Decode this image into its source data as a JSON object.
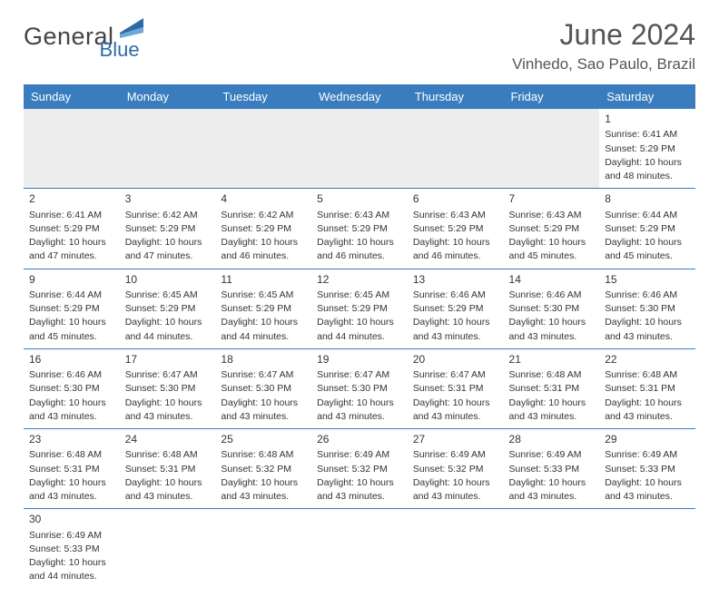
{
  "brand": {
    "text1": "General",
    "text2": "Blue"
  },
  "title": "June 2024",
  "location": "Vinhedo, Sao Paulo, Brazil",
  "colors": {
    "header_bg": "#3a7dbf",
    "header_fg": "#ffffff",
    "rule": "#3a7dbf",
    "text": "#333333",
    "brand_blue": "#2f6aa8"
  },
  "weekdays": [
    "Sunday",
    "Monday",
    "Tuesday",
    "Wednesday",
    "Thursday",
    "Friday",
    "Saturday"
  ],
  "weeks": [
    [
      null,
      null,
      null,
      null,
      null,
      null,
      {
        "n": "1",
        "sr": "Sunrise: 6:41 AM",
        "ss": "Sunset: 5:29 PM",
        "d1": "Daylight: 10 hours",
        "d2": "and 48 minutes."
      }
    ],
    [
      {
        "n": "2",
        "sr": "Sunrise: 6:41 AM",
        "ss": "Sunset: 5:29 PM",
        "d1": "Daylight: 10 hours",
        "d2": "and 47 minutes."
      },
      {
        "n": "3",
        "sr": "Sunrise: 6:42 AM",
        "ss": "Sunset: 5:29 PM",
        "d1": "Daylight: 10 hours",
        "d2": "and 47 minutes."
      },
      {
        "n": "4",
        "sr": "Sunrise: 6:42 AM",
        "ss": "Sunset: 5:29 PM",
        "d1": "Daylight: 10 hours",
        "d2": "and 46 minutes."
      },
      {
        "n": "5",
        "sr": "Sunrise: 6:43 AM",
        "ss": "Sunset: 5:29 PM",
        "d1": "Daylight: 10 hours",
        "d2": "and 46 minutes."
      },
      {
        "n": "6",
        "sr": "Sunrise: 6:43 AM",
        "ss": "Sunset: 5:29 PM",
        "d1": "Daylight: 10 hours",
        "d2": "and 46 minutes."
      },
      {
        "n": "7",
        "sr": "Sunrise: 6:43 AM",
        "ss": "Sunset: 5:29 PM",
        "d1": "Daylight: 10 hours",
        "d2": "and 45 minutes."
      },
      {
        "n": "8",
        "sr": "Sunrise: 6:44 AM",
        "ss": "Sunset: 5:29 PM",
        "d1": "Daylight: 10 hours",
        "d2": "and 45 minutes."
      }
    ],
    [
      {
        "n": "9",
        "sr": "Sunrise: 6:44 AM",
        "ss": "Sunset: 5:29 PM",
        "d1": "Daylight: 10 hours",
        "d2": "and 45 minutes."
      },
      {
        "n": "10",
        "sr": "Sunrise: 6:45 AM",
        "ss": "Sunset: 5:29 PM",
        "d1": "Daylight: 10 hours",
        "d2": "and 44 minutes."
      },
      {
        "n": "11",
        "sr": "Sunrise: 6:45 AM",
        "ss": "Sunset: 5:29 PM",
        "d1": "Daylight: 10 hours",
        "d2": "and 44 minutes."
      },
      {
        "n": "12",
        "sr": "Sunrise: 6:45 AM",
        "ss": "Sunset: 5:29 PM",
        "d1": "Daylight: 10 hours",
        "d2": "and 44 minutes."
      },
      {
        "n": "13",
        "sr": "Sunrise: 6:46 AM",
        "ss": "Sunset: 5:29 PM",
        "d1": "Daylight: 10 hours",
        "d2": "and 43 minutes."
      },
      {
        "n": "14",
        "sr": "Sunrise: 6:46 AM",
        "ss": "Sunset: 5:30 PM",
        "d1": "Daylight: 10 hours",
        "d2": "and 43 minutes."
      },
      {
        "n": "15",
        "sr": "Sunrise: 6:46 AM",
        "ss": "Sunset: 5:30 PM",
        "d1": "Daylight: 10 hours",
        "d2": "and 43 minutes."
      }
    ],
    [
      {
        "n": "16",
        "sr": "Sunrise: 6:46 AM",
        "ss": "Sunset: 5:30 PM",
        "d1": "Daylight: 10 hours",
        "d2": "and 43 minutes."
      },
      {
        "n": "17",
        "sr": "Sunrise: 6:47 AM",
        "ss": "Sunset: 5:30 PM",
        "d1": "Daylight: 10 hours",
        "d2": "and 43 minutes."
      },
      {
        "n": "18",
        "sr": "Sunrise: 6:47 AM",
        "ss": "Sunset: 5:30 PM",
        "d1": "Daylight: 10 hours",
        "d2": "and 43 minutes."
      },
      {
        "n": "19",
        "sr": "Sunrise: 6:47 AM",
        "ss": "Sunset: 5:30 PM",
        "d1": "Daylight: 10 hours",
        "d2": "and 43 minutes."
      },
      {
        "n": "20",
        "sr": "Sunrise: 6:47 AM",
        "ss": "Sunset: 5:31 PM",
        "d1": "Daylight: 10 hours",
        "d2": "and 43 minutes."
      },
      {
        "n": "21",
        "sr": "Sunrise: 6:48 AM",
        "ss": "Sunset: 5:31 PM",
        "d1": "Daylight: 10 hours",
        "d2": "and 43 minutes."
      },
      {
        "n": "22",
        "sr": "Sunrise: 6:48 AM",
        "ss": "Sunset: 5:31 PM",
        "d1": "Daylight: 10 hours",
        "d2": "and 43 minutes."
      }
    ],
    [
      {
        "n": "23",
        "sr": "Sunrise: 6:48 AM",
        "ss": "Sunset: 5:31 PM",
        "d1": "Daylight: 10 hours",
        "d2": "and 43 minutes."
      },
      {
        "n": "24",
        "sr": "Sunrise: 6:48 AM",
        "ss": "Sunset: 5:31 PM",
        "d1": "Daylight: 10 hours",
        "d2": "and 43 minutes."
      },
      {
        "n": "25",
        "sr": "Sunrise: 6:48 AM",
        "ss": "Sunset: 5:32 PM",
        "d1": "Daylight: 10 hours",
        "d2": "and 43 minutes."
      },
      {
        "n": "26",
        "sr": "Sunrise: 6:49 AM",
        "ss": "Sunset: 5:32 PM",
        "d1": "Daylight: 10 hours",
        "d2": "and 43 minutes."
      },
      {
        "n": "27",
        "sr": "Sunrise: 6:49 AM",
        "ss": "Sunset: 5:32 PM",
        "d1": "Daylight: 10 hours",
        "d2": "and 43 minutes."
      },
      {
        "n": "28",
        "sr": "Sunrise: 6:49 AM",
        "ss": "Sunset: 5:33 PM",
        "d1": "Daylight: 10 hours",
        "d2": "and 43 minutes."
      },
      {
        "n": "29",
        "sr": "Sunrise: 6:49 AM",
        "ss": "Sunset: 5:33 PM",
        "d1": "Daylight: 10 hours",
        "d2": "and 43 minutes."
      }
    ],
    [
      {
        "n": "30",
        "sr": "Sunrise: 6:49 AM",
        "ss": "Sunset: 5:33 PM",
        "d1": "Daylight: 10 hours",
        "d2": "and 44 minutes."
      },
      null,
      null,
      null,
      null,
      null,
      null
    ]
  ]
}
